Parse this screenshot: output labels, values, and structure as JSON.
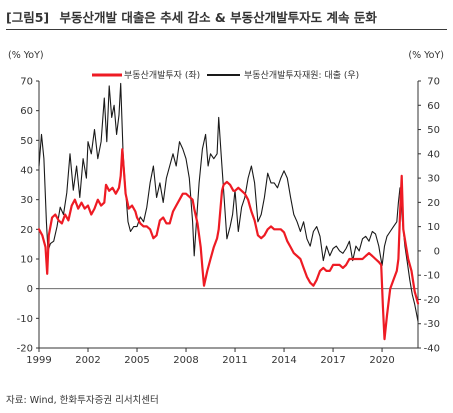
{
  "header": {
    "figure_label": "[그림5]",
    "title": "부동산개발 대출은 추세 감소 & 부동산개발투자도 계속 둔화"
  },
  "source": "자료: Wind, 한화투자증권 리서치센터",
  "colors": {
    "red": "#ee1b24",
    "black": "#1a1a1a",
    "axis": "#333333"
  },
  "chart_data": {
    "type": "line",
    "title": "부동산개발 대출은 추세 감소 & 부동산개발투자도 계속 둔화",
    "left_axis": {
      "label": "(% YoY)",
      "range": [
        -20,
        70
      ],
      "ticks": [
        -20,
        -10,
        0,
        10,
        20,
        30,
        40,
        50,
        60,
        70
      ]
    },
    "right_axis": {
      "label": "(% YoY)",
      "range": [
        -40,
        70
      ],
      "ticks": [
        -40,
        -30,
        -20,
        -10,
        0,
        10,
        20,
        30,
        40,
        50,
        60,
        70
      ]
    },
    "x_axis": {
      "range": [
        1999.0,
        2022.2
      ],
      "tick_labels": [
        "1999",
        "2002",
        "2005",
        "2008",
        "2011",
        "2014",
        "2017",
        "2020"
      ]
    },
    "legend_placement": "top",
    "grid": false,
    "series": [
      {
        "name": "부동산개발투자 (좌)",
        "color": "#ee1b24",
        "axis": "left",
        "points": [
          [
            1999.0,
            20
          ],
          [
            1999.2,
            18
          ],
          [
            1999.4,
            14
          ],
          [
            1999.5,
            5
          ],
          [
            1999.6,
            18
          ],
          [
            1999.8,
            24
          ],
          [
            2000.0,
            25
          ],
          [
            2000.2,
            23
          ],
          [
            2000.4,
            22
          ],
          [
            2000.6,
            25
          ],
          [
            2000.8,
            23
          ],
          [
            2001.0,
            28
          ],
          [
            2001.2,
            30
          ],
          [
            2001.4,
            27
          ],
          [
            2001.6,
            29
          ],
          [
            2001.8,
            27
          ],
          [
            2002.0,
            28
          ],
          [
            2002.2,
            25
          ],
          [
            2002.4,
            27
          ],
          [
            2002.6,
            30
          ],
          [
            2002.8,
            28
          ],
          [
            2003.0,
            29
          ],
          [
            2003.1,
            35
          ],
          [
            2003.3,
            33
          ],
          [
            2003.5,
            34
          ],
          [
            2003.7,
            32
          ],
          [
            2003.9,
            34
          ],
          [
            2004.0,
            38
          ],
          [
            2004.1,
            47
          ],
          [
            2004.3,
            32
          ],
          [
            2004.5,
            27
          ],
          [
            2004.7,
            28
          ],
          [
            2004.9,
            26
          ],
          [
            2005.0,
            24
          ],
          [
            2005.2,
            22
          ],
          [
            2005.4,
            21
          ],
          [
            2005.6,
            21
          ],
          [
            2005.8,
            20
          ],
          [
            2006.0,
            17
          ],
          [
            2006.2,
            18
          ],
          [
            2006.4,
            23
          ],
          [
            2006.6,
            24
          ],
          [
            2006.8,
            22
          ],
          [
            2007.0,
            22
          ],
          [
            2007.2,
            26
          ],
          [
            2007.4,
            28
          ],
          [
            2007.6,
            30
          ],
          [
            2007.8,
            32
          ],
          [
            2008.0,
            32
          ],
          [
            2008.2,
            31
          ],
          [
            2008.4,
            30
          ],
          [
            2008.5,
            27
          ],
          [
            2008.7,
            22
          ],
          [
            2008.9,
            14
          ],
          [
            2009.0,
            7
          ],
          [
            2009.1,
            1
          ],
          [
            2009.3,
            6
          ],
          [
            2009.5,
            10
          ],
          [
            2009.7,
            14
          ],
          [
            2009.9,
            17
          ],
          [
            2010.0,
            20
          ],
          [
            2010.2,
            33
          ],
          [
            2010.3,
            35
          ],
          [
            2010.5,
            36
          ],
          [
            2010.7,
            35
          ],
          [
            2010.9,
            33
          ],
          [
            2011.0,
            33
          ],
          [
            2011.2,
            34
          ],
          [
            2011.4,
            33
          ],
          [
            2011.6,
            32
          ],
          [
            2011.8,
            30
          ],
          [
            2011.9,
            28
          ],
          [
            2012.0,
            26
          ],
          [
            2012.2,
            23
          ],
          [
            2012.4,
            18
          ],
          [
            2012.6,
            17
          ],
          [
            2012.8,
            18
          ],
          [
            2013.0,
            20
          ],
          [
            2013.2,
            21
          ],
          [
            2013.4,
            20
          ],
          [
            2013.6,
            20
          ],
          [
            2013.8,
            20
          ],
          [
            2014.0,
            19
          ],
          [
            2014.2,
            16
          ],
          [
            2014.4,
            14
          ],
          [
            2014.6,
            12
          ],
          [
            2014.8,
            11
          ],
          [
            2015.0,
            10
          ],
          [
            2015.2,
            7
          ],
          [
            2015.4,
            4
          ],
          [
            2015.6,
            2
          ],
          [
            2015.8,
            1
          ],
          [
            2016.0,
            3
          ],
          [
            2016.2,
            6
          ],
          [
            2016.4,
            7
          ],
          [
            2016.6,
            6
          ],
          [
            2016.8,
            6
          ],
          [
            2017.0,
            8
          ],
          [
            2017.2,
            8
          ],
          [
            2017.4,
            8
          ],
          [
            2017.6,
            7
          ],
          [
            2017.8,
            8
          ],
          [
            2018.0,
            10
          ],
          [
            2018.2,
            10
          ],
          [
            2018.4,
            10
          ],
          [
            2018.6,
            10
          ],
          [
            2018.8,
            10
          ],
          [
            2019.0,
            11
          ],
          [
            2019.2,
            12
          ],
          [
            2019.4,
            11
          ],
          [
            2019.6,
            10
          ],
          [
            2019.8,
            9
          ],
          [
            2019.95,
            8
          ],
          [
            2020.05,
            -6
          ],
          [
            2020.15,
            -17
          ],
          [
            2020.3,
            -9
          ],
          [
            2020.5,
            0
          ],
          [
            2020.7,
            3
          ],
          [
            2020.9,
            6
          ],
          [
            2021.0,
            10
          ],
          [
            2021.1,
            25
          ],
          [
            2021.2,
            38
          ],
          [
            2021.3,
            20
          ],
          [
            2021.45,
            15
          ],
          [
            2021.6,
            10
          ],
          [
            2021.8,
            6
          ],
          [
            2022.0,
            -1
          ],
          [
            2022.2,
            -5
          ]
        ]
      },
      {
        "name": "부동산개발투자재원: 대출 (우)",
        "color": "#1a1a1a",
        "axis": "right",
        "points": [
          [
            1999.0,
            35
          ],
          [
            1999.15,
            48
          ],
          [
            1999.3,
            38
          ],
          [
            1999.45,
            12
          ],
          [
            1999.55,
            0
          ],
          [
            1999.7,
            3
          ],
          [
            1999.9,
            4
          ],
          [
            2000.1,
            10
          ],
          [
            2000.3,
            18
          ],
          [
            2000.5,
            15
          ],
          [
            2000.7,
            24
          ],
          [
            2000.9,
            40
          ],
          [
            2001.1,
            25
          ],
          [
            2001.3,
            35
          ],
          [
            2001.5,
            22
          ],
          [
            2001.7,
            38
          ],
          [
            2001.9,
            30
          ],
          [
            2002.0,
            45
          ],
          [
            2002.2,
            40
          ],
          [
            2002.4,
            50
          ],
          [
            2002.6,
            38
          ],
          [
            2002.8,
            45
          ],
          [
            2003.0,
            63
          ],
          [
            2003.15,
            45
          ],
          [
            2003.3,
            68
          ],
          [
            2003.45,
            55
          ],
          [
            2003.6,
            60
          ],
          [
            2003.75,
            48
          ],
          [
            2003.9,
            56
          ],
          [
            2004.0,
            69
          ],
          [
            2004.15,
            40
          ],
          [
            2004.3,
            25
          ],
          [
            2004.45,
            12
          ],
          [
            2004.6,
            8
          ],
          [
            2004.8,
            10
          ],
          [
            2005.0,
            10
          ],
          [
            2005.2,
            14
          ],
          [
            2005.4,
            12
          ],
          [
            2005.6,
            18
          ],
          [
            2005.8,
            28
          ],
          [
            2006.0,
            35
          ],
          [
            2006.2,
            22
          ],
          [
            2006.4,
            28
          ],
          [
            2006.6,
            20
          ],
          [
            2006.8,
            30
          ],
          [
            2007.0,
            35
          ],
          [
            2007.2,
            40
          ],
          [
            2007.4,
            35
          ],
          [
            2007.6,
            45
          ],
          [
            2007.8,
            42
          ],
          [
            2008.0,
            38
          ],
          [
            2008.2,
            30
          ],
          [
            2008.4,
            12
          ],
          [
            2008.5,
            -2
          ],
          [
            2008.6,
            8
          ],
          [
            2008.8,
            28
          ],
          [
            2009.0,
            42
          ],
          [
            2009.2,
            48
          ],
          [
            2009.35,
            35
          ],
          [
            2009.5,
            40
          ],
          [
            2009.7,
            38
          ],
          [
            2009.9,
            40
          ],
          [
            2010.0,
            55
          ],
          [
            2010.15,
            40
          ],
          [
            2010.3,
            25
          ],
          [
            2010.5,
            5
          ],
          [
            2010.7,
            10
          ],
          [
            2010.85,
            15
          ],
          [
            2011.0,
            25
          ],
          [
            2011.2,
            8
          ],
          [
            2011.4,
            18
          ],
          [
            2011.6,
            22
          ],
          [
            2011.8,
            30
          ],
          [
            2012.0,
            35
          ],
          [
            2012.2,
            28
          ],
          [
            2012.4,
            12
          ],
          [
            2012.6,
            15
          ],
          [
            2012.8,
            22
          ],
          [
            2013.0,
            32
          ],
          [
            2013.2,
            28
          ],
          [
            2013.4,
            28
          ],
          [
            2013.6,
            26
          ],
          [
            2013.8,
            30
          ],
          [
            2014.0,
            33
          ],
          [
            2014.2,
            30
          ],
          [
            2014.4,
            22
          ],
          [
            2014.6,
            15
          ],
          [
            2014.8,
            12
          ],
          [
            2015.0,
            8
          ],
          [
            2015.2,
            12
          ],
          [
            2015.4,
            5
          ],
          [
            2015.6,
            2
          ],
          [
            2015.8,
            8
          ],
          [
            2016.0,
            10
          ],
          [
            2016.2,
            6
          ],
          [
            2016.4,
            -4
          ],
          [
            2016.6,
            2
          ],
          [
            2016.8,
            -2
          ],
          [
            2017.0,
            1
          ],
          [
            2017.2,
            2
          ],
          [
            2017.4,
            0
          ],
          [
            2017.6,
            -1
          ],
          [
            2017.8,
            1
          ],
          [
            2018.0,
            4
          ],
          [
            2018.2,
            -4
          ],
          [
            2018.4,
            2
          ],
          [
            2018.6,
            0
          ],
          [
            2018.8,
            5
          ],
          [
            2019.0,
            6
          ],
          [
            2019.2,
            4
          ],
          [
            2019.4,
            8
          ],
          [
            2019.6,
            7
          ],
          [
            2019.8,
            2
          ],
          [
            2019.9,
            -2
          ],
          [
            2020.0,
            -6
          ],
          [
            2020.15,
            2
          ],
          [
            2020.3,
            6
          ],
          [
            2020.5,
            8
          ],
          [
            2020.7,
            10
          ],
          [
            2020.9,
            12
          ],
          [
            2021.0,
            20
          ],
          [
            2021.1,
            26
          ],
          [
            2021.25,
            12
          ],
          [
            2021.4,
            2
          ],
          [
            2021.55,
            -5
          ],
          [
            2021.7,
            -12
          ],
          [
            2021.85,
            -18
          ],
          [
            2022.0,
            -22
          ],
          [
            2022.2,
            -29
          ]
        ]
      }
    ]
  }
}
